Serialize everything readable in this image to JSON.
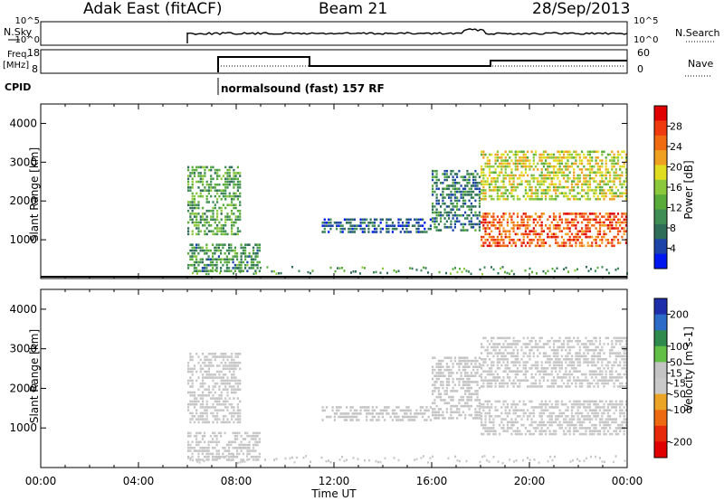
{
  "header": {
    "station": "Adak East (fitACF)",
    "beam": "Beam 21",
    "date": "28/Sep/2013"
  },
  "panels": {
    "nsky_label": "N.Sky",
    "nsky_ticks_left": [
      "10^5",
      "10^0"
    ],
    "nsky_ticks_right": [
      "10^5",
      "10^0"
    ],
    "nsearch_label": "N.Search",
    "freq_label": "Freq.",
    "freq_unit": "[MHz]",
    "freq_ticks": [
      "18",
      "8"
    ],
    "nave_ticks": [
      "60",
      "0"
    ],
    "nave_label": "Nave",
    "cpid_label": "CPID",
    "cpid_text": "normalsound (fast) 157 RF"
  },
  "colors": {
    "power_scale": [
      "#0018f0",
      "#1c44a8",
      "#2e6e58",
      "#3f8e55",
      "#59ac3a",
      "#8cc83b",
      "#e0dc20",
      "#f0a020",
      "#f06a10",
      "#ee3a0c",
      "#e00000"
    ],
    "velocity_scale": [
      "#1e2eaa",
      "#2c6cc8",
      "#2f8a4d",
      "#62c046",
      "#c4c4c4",
      "#c9c9c9",
      "#eca427",
      "#ee6a10",
      "#e62a0a",
      "#e00000"
    ]
  },
  "chart_data": [
    {
      "type": "heatmap",
      "title": "Power",
      "ylabel": "Slant Range [km]",
      "xlabel": "",
      "xlim": [
        "00:00",
        "24:00"
      ],
      "ylim": [
        0,
        4500
      ],
      "yticks": [
        "1000",
        "2000",
        "3000",
        "4000"
      ],
      "colorbar": {
        "label": "Power [dB]",
        "ticks": [
          "4",
          "8",
          "12",
          "16",
          "20",
          "24",
          "28"
        ],
        "range": [
          0,
          32
        ]
      },
      "echo_regions": [
        {
          "start_hour": 6.0,
          "end_hour": 8.2,
          "range_km": [
            1100,
            2900
          ],
          "value": 12
        },
        {
          "start_hour": 6.0,
          "end_hour": 9.0,
          "range_km": [
            150,
            900
          ],
          "value": 10
        },
        {
          "start_hour": 11.5,
          "end_hour": 16.0,
          "range_km": [
            1150,
            1550
          ],
          "value": 6
        },
        {
          "start_hour": 16.0,
          "end_hour": 18.0,
          "range_km": [
            1200,
            2800
          ],
          "value": 8
        },
        {
          "start_hour": 18.0,
          "end_hour": 24.0,
          "range_km": [
            800,
            1700
          ],
          "value": 26
        },
        {
          "start_hour": 18.0,
          "end_hour": 24.0,
          "range_km": [
            2000,
            3300
          ],
          "value": 18
        }
      ]
    },
    {
      "type": "heatmap",
      "title": "Velocity",
      "ylabel": "Slant Range [km]",
      "xlabel": "Time UT",
      "xlim": [
        "00:00",
        "24:00"
      ],
      "ylim": [
        0,
        4500
      ],
      "xticks": [
        "00:00",
        "04:00",
        "08:00",
        "12:00",
        "16:00",
        "20:00",
        "00:00"
      ],
      "yticks": [
        "1000",
        "2000",
        "3000",
        "4000"
      ],
      "colorbar": {
        "label": "Velocity [m s-1]",
        "ticks": [
          "200",
          "100",
          "50",
          "15",
          "-15",
          "-50",
          "-100",
          "-200"
        ],
        "range": [
          -250,
          250
        ]
      },
      "echo_regions": [
        {
          "start_hour": 6.0,
          "end_hour": 8.2,
          "range_km": [
            1100,
            2900
          ],
          "value": 0
        },
        {
          "start_hour": 6.0,
          "end_hour": 9.0,
          "range_km": [
            150,
            900
          ],
          "value": 0
        },
        {
          "start_hour": 11.5,
          "end_hour": 16.0,
          "range_km": [
            1150,
            1550
          ],
          "value": 30
        },
        {
          "start_hour": 16.0,
          "end_hour": 18.0,
          "range_km": [
            1200,
            2800
          ],
          "value": 40
        },
        {
          "start_hour": 18.0,
          "end_hour": 24.0,
          "range_km": [
            800,
            1700
          ],
          "value": 0
        },
        {
          "start_hour": 18.0,
          "end_hour": 24.0,
          "range_km": [
            2000,
            3300
          ],
          "value": 0
        }
      ]
    }
  ]
}
